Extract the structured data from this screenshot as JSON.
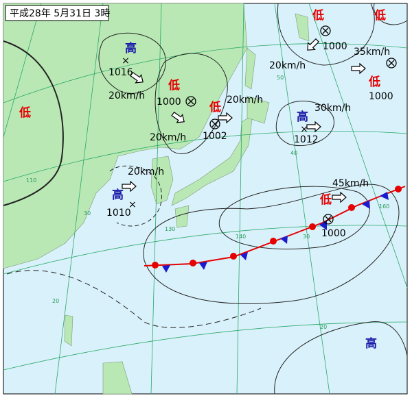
{
  "title": "平成28年 5月31日 3時",
  "systems": [
    {
      "kind": "高",
      "color": "#1a1aa8",
      "pressure": "1016",
      "speed": "20km/h"
    },
    {
      "kind": "低",
      "color": "#e60000",
      "pressure": "1000",
      "speed": "20km/h"
    },
    {
      "kind": "低",
      "color": "#e60000",
      "pressure": "1002",
      "speed": "20km/h"
    },
    {
      "kind": "低",
      "color": "#e60000",
      "pressure": "1000",
      "speed": "20km/h"
    },
    {
      "kind": "低",
      "color": "#e60000"
    },
    {
      "kind": "低",
      "color": "#e60000",
      "pressure": "1000",
      "speed": "35km/h"
    },
    {
      "kind": "低",
      "color": "#e60000"
    },
    {
      "kind": "高",
      "color": "#1a1aa8",
      "pressure": "1012",
      "speed": "30km/h"
    },
    {
      "kind": "高",
      "color": "#1a1aa8",
      "pressure": "1010",
      "speed": "20km/h"
    },
    {
      "kind": "低",
      "color": "#e60000",
      "pressure": "1000",
      "speed": "45km/h"
    },
    {
      "kind": "高",
      "color": "#1a1aa8"
    }
  ],
  "grid_labels": [
    "50",
    "40",
    "30",
    "20",
    "140",
    "130",
    "160",
    "110",
    "30",
    "20"
  ]
}
